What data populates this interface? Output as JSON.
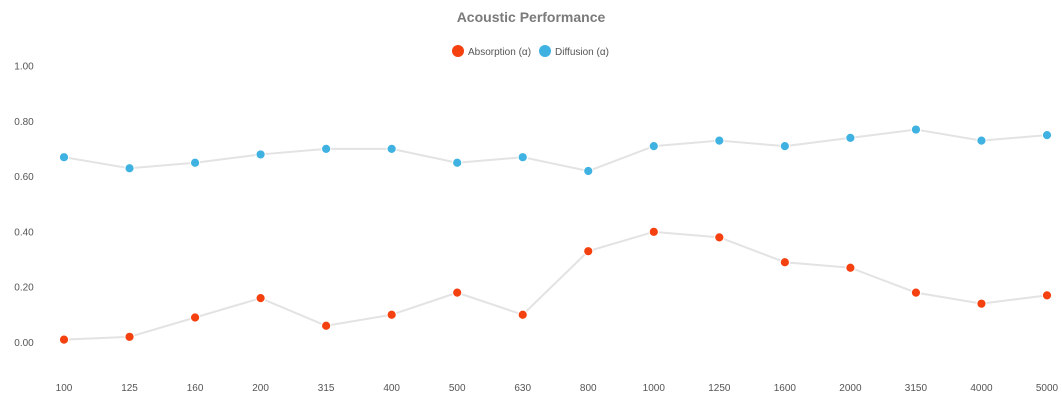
{
  "chart_data": {
    "type": "line",
    "title": "Acoustic Performance",
    "xlabel": "",
    "ylabel": "",
    "categories": [
      "100",
      "125",
      "160",
      "200",
      "315",
      "400",
      "500",
      "630",
      "800",
      "1000",
      "1250",
      "1600",
      "2000",
      "3150",
      "4000",
      "5000"
    ],
    "ylim": [
      -0.1,
      1.0
    ],
    "yticks": [
      "0.00",
      "0.20",
      "0.40",
      "0.60",
      "0.80",
      "1.00"
    ],
    "ytick_values": [
      0.0,
      0.2,
      0.4,
      0.6,
      0.8,
      1.0
    ],
    "grid": false,
    "legend_position": "top-center",
    "line_color": "#e3e3e3",
    "series": [
      {
        "name": "Absorption (α)",
        "color": "#f5400f",
        "values": [
          0.01,
          0.02,
          0.09,
          0.16,
          0.06,
          0.1,
          0.18,
          0.1,
          0.33,
          0.4,
          0.38,
          0.29,
          0.27,
          0.18,
          0.14,
          0.17
        ]
      },
      {
        "name": "Diffusion (α)",
        "color": "#3fb2e2",
        "values": [
          0.67,
          0.63,
          0.65,
          0.68,
          0.7,
          0.7,
          0.65,
          0.67,
          0.62,
          0.71,
          0.73,
          0.71,
          0.74,
          0.77,
          0.73,
          0.75
        ]
      }
    ]
  }
}
